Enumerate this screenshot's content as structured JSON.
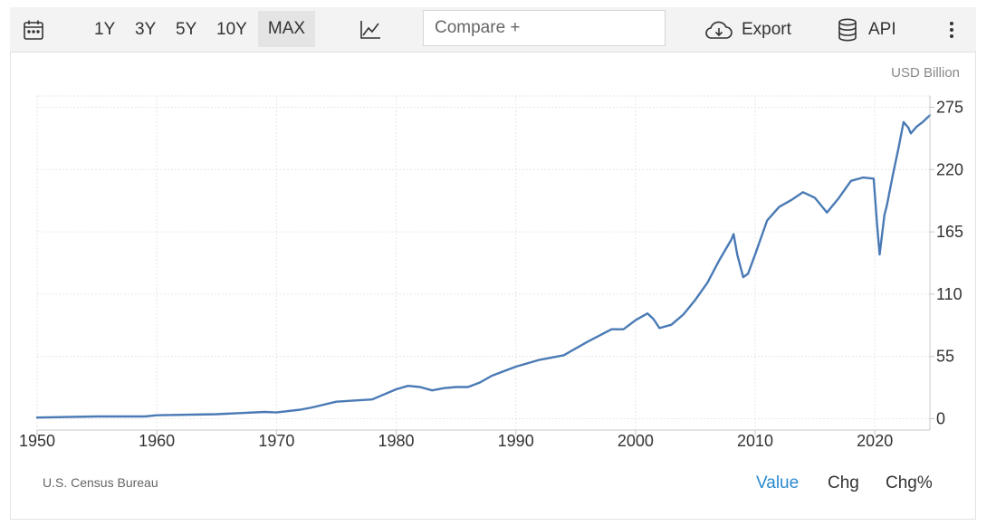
{
  "toolbar": {
    "icons": [
      "calendar-icon",
      "line-chart-icon",
      "cloud-download-icon",
      "database-icon",
      "more-vertical-icon"
    ],
    "ranges": [
      "1Y",
      "3Y",
      "5Y",
      "10Y",
      "MAX"
    ],
    "active_range": "MAX",
    "compare_placeholder": "Compare +",
    "export_label": "Export",
    "api_label": "API"
  },
  "unit_label": "USD Billion",
  "source_label": "U.S. Census Bureau",
  "modes": [
    "Value",
    "Chg",
    "Chg%"
  ],
  "active_mode": "Value",
  "colors": {
    "line": "#4a7ab5",
    "active_mode": "#2b8ad0"
  },
  "chart_data": {
    "type": "line",
    "xlabel": "",
    "ylabel": "",
    "x_ticks": [
      "1950",
      "1960",
      "1970",
      "1980",
      "1990",
      "2000",
      "2010",
      "2020"
    ],
    "y_ticks": [
      "0",
      "55",
      "110",
      "165",
      "220",
      "275"
    ],
    "xlim": [
      1950,
      2024.6
    ],
    "ylim": [
      -10,
      285
    ],
    "grid": true,
    "y_axis_side": "right",
    "series": [
      {
        "x": [
          1950,
          1955,
          1959,
          1960,
          1965,
          1969,
          1970,
          1972,
          1973,
          1975,
          1978,
          1980,
          1981,
          1982,
          1983,
          1984,
          1985,
          1986,
          1987,
          1988,
          1990,
          1992,
          1994,
          1996,
          1998,
          1999,
          2000,
          2001,
          2001.5,
          2002,
          2003,
          2004,
          2005,
          2006,
          2007,
          2008,
          2008.2,
          2008.5,
          2009,
          2009.4,
          2010,
          2011,
          2012,
          2013,
          2014,
          2015,
          2016,
          2017,
          2018,
          2019,
          2019.9,
          2020.2,
          2020.4,
          2020.8,
          2021,
          2021.5,
          2022,
          2022.4,
          2022.8,
          2023,
          2023.5,
          2024,
          2024.6
        ],
        "y": [
          1,
          2,
          2,
          3,
          4,
          6,
          5.5,
          8,
          10,
          15,
          17,
          26,
          29,
          28,
          25,
          27,
          28,
          28,
          32,
          38,
          46,
          52,
          56,
          68,
          79,
          79,
          87,
          93,
          88,
          80,
          83,
          92,
          105,
          120,
          140,
          158,
          163,
          145,
          125,
          128,
          145,
          175,
          187,
          193,
          200,
          195,
          182,
          195,
          210,
          213,
          212,
          170,
          145,
          180,
          188,
          215,
          240,
          262,
          257,
          252,
          258,
          262,
          268
        ]
      }
    ]
  }
}
